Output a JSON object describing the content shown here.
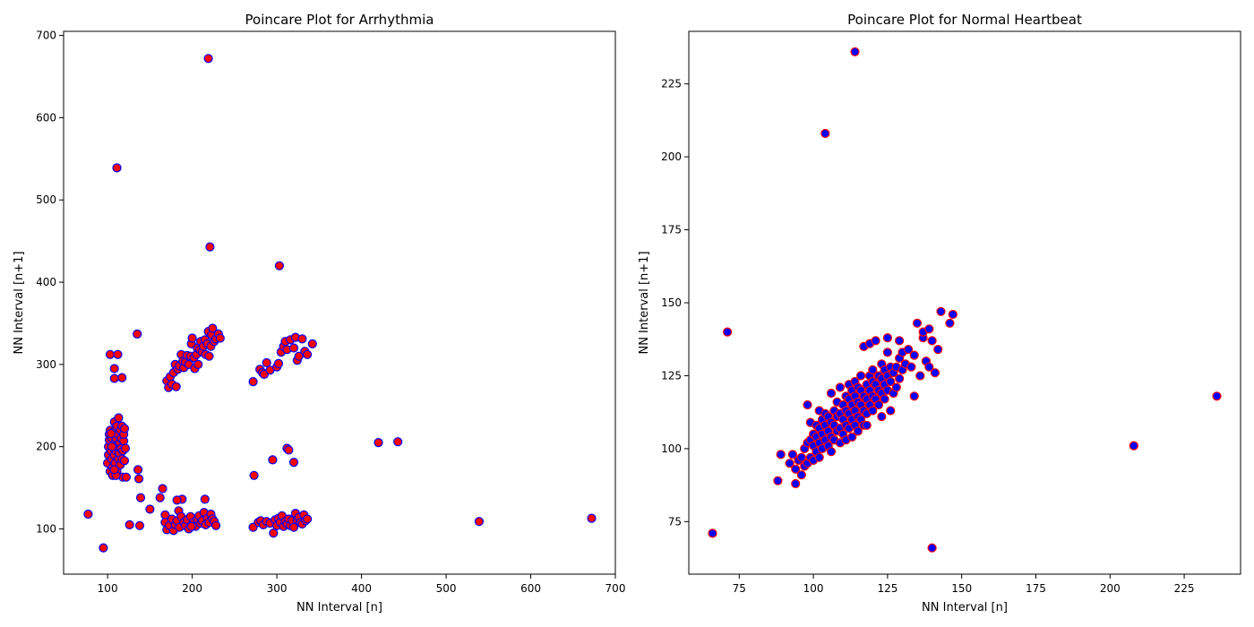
{
  "colors": {
    "left_fill": "#ff0000",
    "left_edge": "#0000ff",
    "right_fill": "#0000ff",
    "right_edge": "#ff0000"
  },
  "chart_data": [
    {
      "type": "scatter",
      "title": "Poincare Plot for Arrhythmia",
      "xlabel": "NN Interval [n]",
      "ylabel": "NN Interval [n+1]",
      "xlim": [
        48,
        700
      ],
      "ylim": [
        45,
        705
      ],
      "xticks": [
        100,
        200,
        300,
        400,
        500,
        600,
        700
      ],
      "yticks": [
        100,
        200,
        300,
        400,
        500,
        600,
        700
      ],
      "grid": false,
      "points": [
        [
          219,
          672
        ],
        [
          111,
          539
        ],
        [
          221,
          443
        ],
        [
          303,
          420
        ],
        [
          77,
          118
        ],
        [
          95,
          77
        ],
        [
          420,
          205
        ],
        [
          443,
          206
        ],
        [
          539,
          109
        ],
        [
          672,
          113
        ],
        [
          103,
          312
        ],
        [
          108,
          295
        ],
        [
          108,
          283
        ],
        [
          112,
          312
        ],
        [
          117,
          284
        ],
        [
          135,
          337
        ],
        [
          136,
          172
        ],
        [
          137,
          161
        ],
        [
          139,
          138
        ],
        [
          138,
          104
        ],
        [
          126,
          105
        ],
        [
          150,
          124
        ],
        [
          162,
          138
        ],
        [
          165,
          149
        ],
        [
          168,
          117
        ],
        [
          100,
          180
        ],
        [
          101,
          190
        ],
        [
          101,
          200
        ],
        [
          102,
          208
        ],
        [
          102,
          215
        ],
        [
          103,
          170
        ],
        [
          103,
          220
        ],
        [
          104,
          195
        ],
        [
          105,
          185
        ],
        [
          105,
          210
        ],
        [
          106,
          175
        ],
        [
          106,
          165
        ],
        [
          107,
          200
        ],
        [
          107,
          218
        ],
        [
          108,
          190
        ],
        [
          108,
          230
        ],
        [
          109,
          205
        ],
        [
          109,
          180
        ],
        [
          110,
          210
        ],
        [
          110,
          195
        ],
        [
          111,
          225
        ],
        [
          111,
          170
        ],
        [
          112,
          200
        ],
        [
          112,
          215
        ],
        [
          113,
          185
        ],
        [
          113,
          235
        ],
        [
          114,
          205
        ],
        [
          114,
          192
        ],
        [
          115,
          220
        ],
        [
          115,
          178
        ],
        [
          116,
          198
        ],
        [
          116,
          210
        ],
        [
          117,
          225
        ],
        [
          117,
          185
        ],
        [
          118,
          195
        ],
        [
          118,
          163
        ],
        [
          119,
          207
        ],
        [
          119,
          215
        ],
        [
          120,
          222
        ],
        [
          120,
          183
        ],
        [
          121,
          198
        ],
        [
          122,
          163
        ],
        [
          110,
          165
        ],
        [
          105,
          200
        ],
        [
          104,
          216
        ],
        [
          108,
          172
        ],
        [
          170,
          280
        ],
        [
          172,
          272
        ],
        [
          174,
          285
        ],
        [
          176,
          276
        ],
        [
          178,
          290
        ],
        [
          180,
          300
        ],
        [
          181,
          273
        ],
        [
          183,
          294
        ],
        [
          185,
          298
        ],
        [
          187,
          312
        ],
        [
          189,
          304
        ],
        [
          190,
          296
        ],
        [
          192,
          303
        ],
        [
          194,
          311
        ],
        [
          196,
          300
        ],
        [
          198,
          310
        ],
        [
          199,
          325
        ],
        [
          200,
          332
        ],
        [
          202,
          308
        ],
        [
          203,
          295
        ],
        [
          205,
          312
        ],
        [
          206,
          320
        ],
        [
          207,
          300
        ],
        [
          209,
          318
        ],
        [
          210,
          328
        ],
        [
          212,
          315
        ],
        [
          213,
          322
        ],
        [
          215,
          330
        ],
        [
          216,
          312
        ],
        [
          218,
          325
        ],
        [
          219,
          340
        ],
        [
          220,
          310
        ],
        [
          222,
          322
        ],
        [
          223,
          336
        ],
        [
          224,
          344
        ],
        [
          226,
          328
        ],
        [
          228,
          331
        ],
        [
          231,
          337
        ],
        [
          233,
          332
        ],
        [
          272,
          279
        ],
        [
          280,
          294
        ],
        [
          283,
          290
        ],
        [
          285,
          288
        ],
        [
          288,
          302
        ],
        [
          292,
          293
        ],
        [
          300,
          297
        ],
        [
          302,
          301
        ],
        [
          305,
          315
        ],
        [
          308,
          322
        ],
        [
          310,
          328
        ],
        [
          312,
          318
        ],
        [
          316,
          330
        ],
        [
          320,
          320
        ],
        [
          322,
          333
        ],
        [
          324,
          305
        ],
        [
          326,
          310
        ],
        [
          330,
          331
        ],
        [
          333,
          316
        ],
        [
          336,
          312
        ],
        [
          342,
          325
        ],
        [
          295,
          184
        ],
        [
          312,
          198
        ],
        [
          314,
          196
        ],
        [
          320,
          181
        ],
        [
          273,
          165
        ],
        [
          168,
          108
        ],
        [
          170,
          99
        ],
        [
          173,
          104
        ],
        [
          176,
          112
        ],
        [
          178,
          98
        ],
        [
          180,
          105
        ],
        [
          182,
          110
        ],
        [
          184,
          122
        ],
        [
          185,
          102
        ],
        [
          187,
          115
        ],
        [
          188,
          136
        ],
        [
          190,
          108
        ],
        [
          192,
          104
        ],
        [
          194,
          111
        ],
        [
          196,
          100
        ],
        [
          198,
          115
        ],
        [
          200,
          105
        ],
        [
          202,
          108
        ],
        [
          204,
          103
        ],
        [
          206,
          112
        ],
        [
          208,
          116
        ],
        [
          210,
          107
        ],
        [
          212,
          110
        ],
        [
          214,
          120
        ],
        [
          215,
          136
        ],
        [
          216,
          105
        ],
        [
          218,
          113
        ],
        [
          220,
          108
        ],
        [
          222,
          118
        ],
        [
          224,
          112
        ],
        [
          226,
          109
        ],
        [
          228,
          104
        ],
        [
          182,
          135
        ],
        [
          199,
          103
        ],
        [
          272,
          102
        ],
        [
          278,
          108
        ],
        [
          281,
          110
        ],
        [
          284,
          105
        ],
        [
          288,
          109
        ],
        [
          292,
          107
        ],
        [
          296,
          95
        ],
        [
          298,
          111
        ],
        [
          300,
          104
        ],
        [
          302,
          113
        ],
        [
          304,
          108
        ],
        [
          306,
          116
        ],
        [
          308,
          103
        ],
        [
          310,
          109
        ],
        [
          312,
          106
        ],
        [
          314,
          112
        ],
        [
          316,
          104
        ],
        [
          318,
          110
        ],
        [
          320,
          102
        ],
        [
          322,
          119
        ],
        [
          324,
          111
        ],
        [
          326,
          114
        ],
        [
          328,
          108
        ],
        [
          330,
          106
        ],
        [
          332,
          117
        ],
        [
          334,
          110
        ],
        [
          336,
          112
        ]
      ]
    },
    {
      "type": "scatter",
      "title": "Poincare Plot for Normal Heartbeat",
      "xlabel": "NN Interval [n]",
      "ylabel": "NN Interval [n+1]",
      "xlim": [
        58,
        244
      ],
      "ylim": [
        57,
        243
      ],
      "xticks": [
        75,
        100,
        125,
        150,
        175,
        200,
        225
      ],
      "yticks": [
        75,
        100,
        125,
        150,
        175,
        200,
        225
      ],
      "grid": false,
      "points": [
        [
          114,
          236
        ],
        [
          104,
          208
        ],
        [
          71,
          140
        ],
        [
          66,
          71
        ],
        [
          140,
          66
        ],
        [
          208,
          101
        ],
        [
          236,
          118
        ],
        [
          88,
          89
        ],
        [
          89,
          98
        ],
        [
          92,
          95
        ],
        [
          93,
          98
        ],
        [
          94,
          88
        ],
        [
          94,
          93
        ],
        [
          95,
          96
        ],
        [
          96,
          91
        ],
        [
          96,
          97
        ],
        [
          97,
          94
        ],
        [
          97,
          100
        ],
        [
          98,
          95
        ],
        [
          98,
          102
        ],
        [
          98,
          115
        ],
        [
          99,
          97
        ],
        [
          99,
          103
        ],
        [
          99,
          109
        ],
        [
          100,
          96
        ],
        [
          100,
          101
        ],
        [
          100,
          105
        ],
        [
          101,
          99
        ],
        [
          101,
          104
        ],
        [
          101,
          108
        ],
        [
          102,
          97
        ],
        [
          102,
          102
        ],
        [
          102,
          107
        ],
        [
          102,
          113
        ],
        [
          103,
          100
        ],
        [
          103,
          105
        ],
        [
          103,
          110
        ],
        [
          104,
          103
        ],
        [
          104,
          108
        ],
        [
          104,
          112
        ],
        [
          105,
          101
        ],
        [
          105,
          106
        ],
        [
          105,
          111
        ],
        [
          106,
          99
        ],
        [
          106,
          104
        ],
        [
          106,
          109
        ],
        [
          106,
          119
        ],
        [
          107,
          103
        ],
        [
          107,
          108
        ],
        [
          107,
          113
        ],
        [
          108,
          106
        ],
        [
          108,
          111
        ],
        [
          108,
          116
        ],
        [
          109,
          102
        ],
        [
          109,
          107
        ],
        [
          109,
          112
        ],
        [
          109,
          121
        ],
        [
          110,
          105
        ],
        [
          110,
          110
        ],
        [
          110,
          115
        ],
        [
          111,
          103
        ],
        [
          111,
          108
        ],
        [
          111,
          113
        ],
        [
          111,
          118
        ],
        [
          112,
          107
        ],
        [
          112,
          112
        ],
        [
          112,
          117
        ],
        [
          112,
          122
        ],
        [
          113,
          104
        ],
        [
          113,
          110
        ],
        [
          113,
          115
        ],
        [
          113,
          120
        ],
        [
          114,
          108
        ],
        [
          114,
          113
        ],
        [
          114,
          118
        ],
        [
          114,
          123
        ],
        [
          115,
          106
        ],
        [
          115,
          111
        ],
        [
          115,
          116
        ],
        [
          115,
          121
        ],
        [
          116,
          110
        ],
        [
          116,
          115
        ],
        [
          116,
          120
        ],
        [
          116,
          125
        ],
        [
          117,
          108
        ],
        [
          117,
          113
        ],
        [
          117,
          118
        ],
        [
          117,
          135
        ],
        [
          118,
          112
        ],
        [
          118,
          117
        ],
        [
          118,
          122
        ],
        [
          118,
          108
        ],
        [
          119,
          115
        ],
        [
          119,
          120
        ],
        [
          119,
          125
        ],
        [
          119,
          136
        ],
        [
          120,
          113
        ],
        [
          120,
          118
        ],
        [
          120,
          123
        ],
        [
          120,
          127
        ],
        [
          121,
          117
        ],
        [
          121,
          122
        ],
        [
          121,
          137
        ],
        [
          122,
          115
        ],
        [
          122,
          120
        ],
        [
          122,
          125
        ],
        [
          123,
          111
        ],
        [
          123,
          119
        ],
        [
          123,
          124
        ],
        [
          123,
          129
        ],
        [
          124,
          117
        ],
        [
          124,
          122
        ],
        [
          124,
          127
        ],
        [
          125,
          120
        ],
        [
          125,
          125
        ],
        [
          125,
          133
        ],
        [
          125,
          138
        ],
        [
          126,
          113
        ],
        [
          126,
          123
        ],
        [
          126,
          128
        ],
        [
          127,
          119
        ],
        [
          127,
          126
        ],
        [
          128,
          121
        ],
        [
          128,
          128
        ],
        [
          129,
          124
        ],
        [
          129,
          131
        ],
        [
          129,
          137
        ],
        [
          130,
          127
        ],
        [
          130,
          133
        ],
        [
          131,
          129
        ],
        [
          132,
          134
        ],
        [
          133,
          128
        ],
        [
          134,
          118
        ],
        [
          134,
          132
        ],
        [
          135,
          143
        ],
        [
          136,
          125
        ],
        [
          137,
          138
        ],
        [
          137,
          140
        ],
        [
          138,
          130
        ],
        [
          139,
          141
        ],
        [
          139,
          128
        ],
        [
          140,
          137
        ],
        [
          141,
          126
        ],
        [
          142,
          134
        ],
        [
          143,
          147
        ],
        [
          146,
          143
        ],
        [
          147,
          146
        ]
      ]
    }
  ]
}
